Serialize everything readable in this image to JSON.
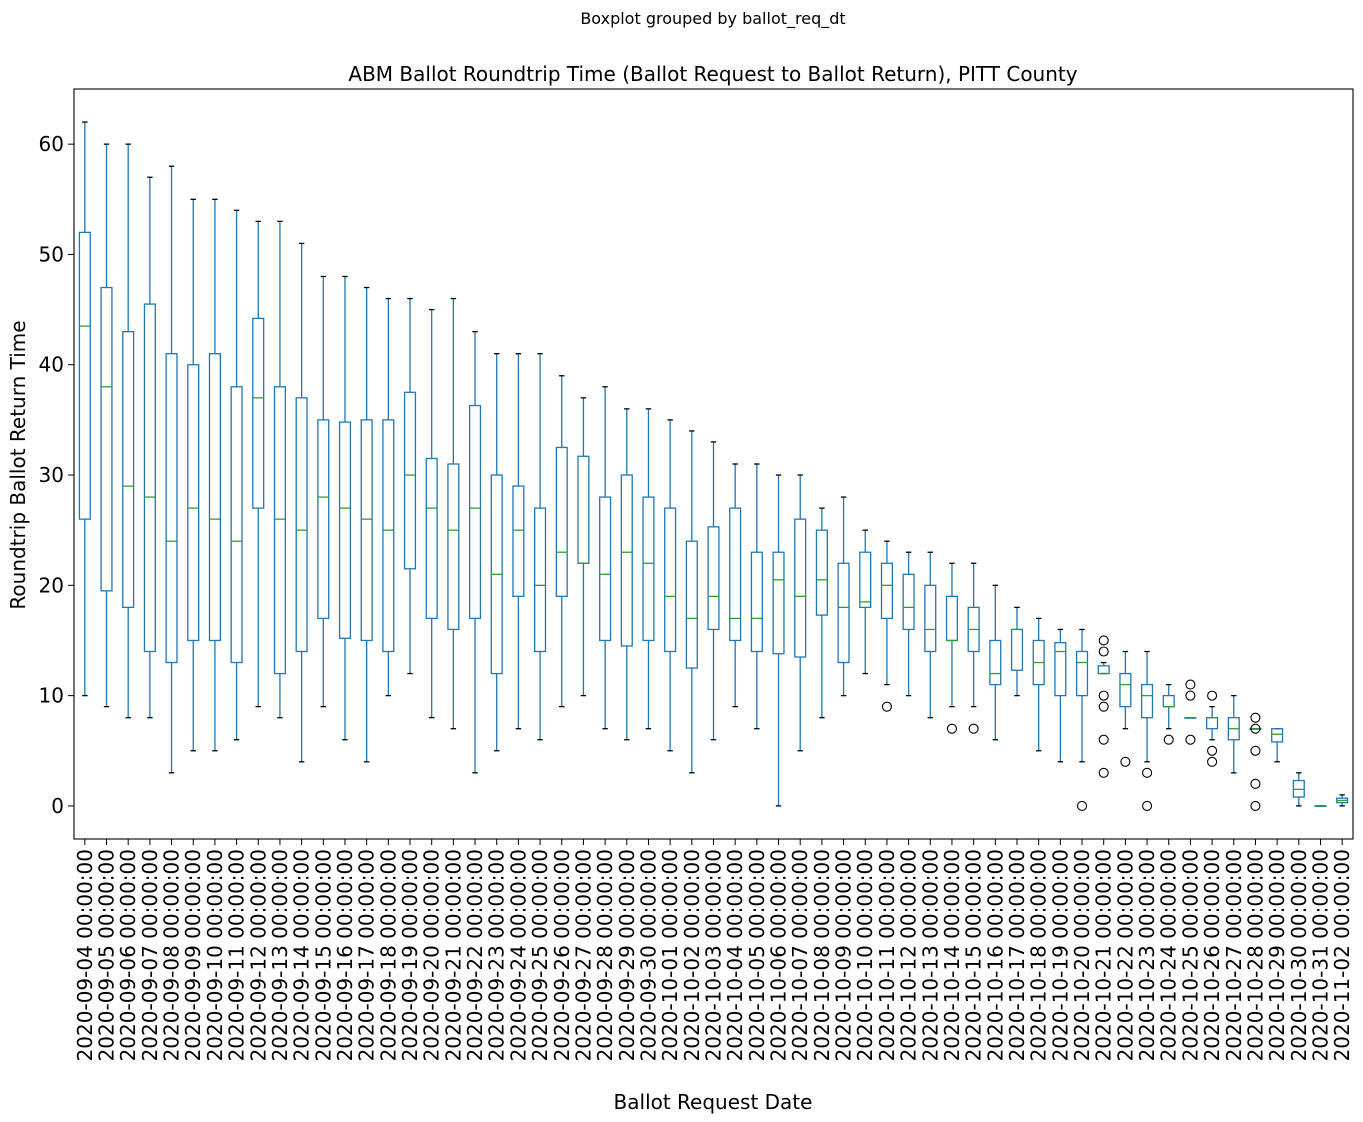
{
  "suptitle": "Boxplot grouped by ballot_req_dt",
  "chart_data": {
    "type": "boxplot",
    "title": "ABM Ballot Roundtrip Time (Ballot Request to Ballot Return), PITT County",
    "xlabel": "Ballot Request Date",
    "ylabel": "Roundtrip Ballot Return Time",
    "ylim": [
      -3,
      65
    ],
    "yticks": [
      0,
      10,
      20,
      30,
      40,
      50,
      60
    ],
    "grid": false,
    "categories": [
      "2020-09-04 00:00:00",
      "2020-09-05 00:00:00",
      "2020-09-06 00:00:00",
      "2020-09-07 00:00:00",
      "2020-09-08 00:00:00",
      "2020-09-09 00:00:00",
      "2020-09-10 00:00:00",
      "2020-09-11 00:00:00",
      "2020-09-12 00:00:00",
      "2020-09-13 00:00:00",
      "2020-09-14 00:00:00",
      "2020-09-15 00:00:00",
      "2020-09-16 00:00:00",
      "2020-09-17 00:00:00",
      "2020-09-18 00:00:00",
      "2020-09-19 00:00:00",
      "2020-09-20 00:00:00",
      "2020-09-21 00:00:00",
      "2020-09-22 00:00:00",
      "2020-09-23 00:00:00",
      "2020-09-24 00:00:00",
      "2020-09-25 00:00:00",
      "2020-09-26 00:00:00",
      "2020-09-27 00:00:00",
      "2020-09-28 00:00:00",
      "2020-09-29 00:00:00",
      "2020-09-30 00:00:00",
      "2020-10-01 00:00:00",
      "2020-10-02 00:00:00",
      "2020-10-03 00:00:00",
      "2020-10-04 00:00:00",
      "2020-10-05 00:00:00",
      "2020-10-06 00:00:00",
      "2020-10-07 00:00:00",
      "2020-10-08 00:00:00",
      "2020-10-09 00:00:00",
      "2020-10-10 00:00:00",
      "2020-10-11 00:00:00",
      "2020-10-12 00:00:00",
      "2020-10-13 00:00:00",
      "2020-10-14 00:00:00",
      "2020-10-15 00:00:00",
      "2020-10-16 00:00:00",
      "2020-10-17 00:00:00",
      "2020-10-18 00:00:00",
      "2020-10-19 00:00:00",
      "2020-10-20 00:00:00",
      "2020-10-21 00:00:00",
      "2020-10-22 00:00:00",
      "2020-10-23 00:00:00",
      "2020-10-24 00:00:00",
      "2020-10-25 00:00:00",
      "2020-10-26 00:00:00",
      "2020-10-27 00:00:00",
      "2020-10-28 00:00:00",
      "2020-10-29 00:00:00",
      "2020-10-30 00:00:00",
      "2020-10-31 00:00:00",
      "2020-11-02 00:00:00"
    ],
    "boxes": [
      {
        "whislo": 10,
        "q1": 26,
        "med": 43.5,
        "q3": 52,
        "whishi": 62,
        "fliers": []
      },
      {
        "whislo": 9,
        "q1": 19.5,
        "med": 38,
        "q3": 47,
        "whishi": 60,
        "fliers": []
      },
      {
        "whislo": 8,
        "q1": 18,
        "med": 29,
        "q3": 43,
        "whishi": 60,
        "fliers": []
      },
      {
        "whislo": 8,
        "q1": 14,
        "med": 28,
        "q3": 45.5,
        "whishi": 57,
        "fliers": []
      },
      {
        "whislo": 3,
        "q1": 13,
        "med": 24,
        "q3": 41,
        "whishi": 58,
        "fliers": []
      },
      {
        "whislo": 5,
        "q1": 15,
        "med": 27,
        "q3": 40,
        "whishi": 55,
        "fliers": []
      },
      {
        "whislo": 5,
        "q1": 15,
        "med": 26,
        "q3": 41,
        "whishi": 55,
        "fliers": []
      },
      {
        "whislo": 6,
        "q1": 13,
        "med": 24,
        "q3": 38,
        "whishi": 54,
        "fliers": []
      },
      {
        "whislo": 9,
        "q1": 27,
        "med": 37,
        "q3": 44.2,
        "whishi": 53,
        "fliers": []
      },
      {
        "whislo": 8,
        "q1": 12,
        "med": 26,
        "q3": 38,
        "whishi": 53,
        "fliers": []
      },
      {
        "whislo": 4,
        "q1": 14,
        "med": 25,
        "q3": 37,
        "whishi": 51,
        "fliers": []
      },
      {
        "whislo": 9,
        "q1": 17,
        "med": 28,
        "q3": 35,
        "whishi": 48,
        "fliers": []
      },
      {
        "whislo": 6,
        "q1": 15.2,
        "med": 27,
        "q3": 34.8,
        "whishi": 48,
        "fliers": []
      },
      {
        "whislo": 4,
        "q1": 15,
        "med": 26,
        "q3": 35,
        "whishi": 47,
        "fliers": []
      },
      {
        "whislo": 10,
        "q1": 14,
        "med": 25,
        "q3": 35,
        "whishi": 46,
        "fliers": []
      },
      {
        "whislo": 12,
        "q1": 21.5,
        "med": 30,
        "q3": 37.5,
        "whishi": 46,
        "fliers": []
      },
      {
        "whislo": 8,
        "q1": 17,
        "med": 27,
        "q3": 31.5,
        "whishi": 45,
        "fliers": []
      },
      {
        "whislo": 7,
        "q1": 16,
        "med": 25,
        "q3": 31,
        "whishi": 46,
        "fliers": []
      },
      {
        "whislo": 3,
        "q1": 17,
        "med": 27,
        "q3": 36.3,
        "whishi": 43,
        "fliers": []
      },
      {
        "whislo": 5,
        "q1": 12,
        "med": 21,
        "q3": 30,
        "whishi": 41,
        "fliers": []
      },
      {
        "whislo": 7,
        "q1": 19,
        "med": 25,
        "q3": 29,
        "whishi": 41,
        "fliers": []
      },
      {
        "whislo": 6,
        "q1": 14,
        "med": 20,
        "q3": 27,
        "whishi": 41,
        "fliers": []
      },
      {
        "whislo": 9,
        "q1": 19,
        "med": 23,
        "q3": 32.5,
        "whishi": 39,
        "fliers": []
      },
      {
        "whislo": 10,
        "q1": 22,
        "med": 22,
        "q3": 31.7,
        "whishi": 37,
        "fliers": []
      },
      {
        "whislo": 7,
        "q1": 15,
        "med": 21,
        "q3": 28,
        "whishi": 38,
        "fliers": []
      },
      {
        "whislo": 6,
        "q1": 14.5,
        "med": 23,
        "q3": 30,
        "whishi": 36,
        "fliers": []
      },
      {
        "whislo": 7,
        "q1": 15,
        "med": 22,
        "q3": 28,
        "whishi": 36,
        "fliers": []
      },
      {
        "whislo": 5,
        "q1": 14,
        "med": 19,
        "q3": 27,
        "whishi": 35,
        "fliers": []
      },
      {
        "whislo": 3,
        "q1": 12.5,
        "med": 17,
        "q3": 24,
        "whishi": 34,
        "fliers": []
      },
      {
        "whislo": 6,
        "q1": 16,
        "med": 19,
        "q3": 25.3,
        "whishi": 33,
        "fliers": []
      },
      {
        "whislo": 9,
        "q1": 15,
        "med": 17,
        "q3": 27,
        "whishi": 31,
        "fliers": []
      },
      {
        "whislo": 7,
        "q1": 14,
        "med": 17,
        "q3": 23,
        "whishi": 31,
        "fliers": []
      },
      {
        "whislo": 0,
        "q1": 13.8,
        "med": 20.5,
        "q3": 23,
        "whishi": 30,
        "fliers": []
      },
      {
        "whislo": 5,
        "q1": 13.5,
        "med": 19,
        "q3": 26,
        "whishi": 30,
        "fliers": []
      },
      {
        "whislo": 8,
        "q1": 17.3,
        "med": 20.5,
        "q3": 25,
        "whishi": 27,
        "fliers": []
      },
      {
        "whislo": 10,
        "q1": 13,
        "med": 18,
        "q3": 22,
        "whishi": 28,
        "fliers": []
      },
      {
        "whislo": 12,
        "q1": 18,
        "med": 18.5,
        "q3": 23,
        "whishi": 25,
        "fliers": []
      },
      {
        "whislo": 11,
        "q1": 17,
        "med": 20,
        "q3": 22,
        "whishi": 24,
        "fliers": [
          9
        ]
      },
      {
        "whislo": 10,
        "q1": 16,
        "med": 18,
        "q3": 21,
        "whishi": 23,
        "fliers": []
      },
      {
        "whislo": 8,
        "q1": 14,
        "med": 16,
        "q3": 20,
        "whishi": 23,
        "fliers": []
      },
      {
        "whislo": 9,
        "q1": 15,
        "med": 15,
        "q3": 19,
        "whishi": 22,
        "fliers": [
          7
        ]
      },
      {
        "whislo": 9,
        "q1": 14,
        "med": 16,
        "q3": 18,
        "whishi": 22,
        "fliers": [
          7
        ]
      },
      {
        "whislo": 6,
        "q1": 11,
        "med": 12,
        "q3": 15,
        "whishi": 20,
        "fliers": []
      },
      {
        "whislo": 10,
        "q1": 12.3,
        "med": 16,
        "q3": 16,
        "whishi": 18,
        "fliers": []
      },
      {
        "whislo": 5,
        "q1": 11,
        "med": 13,
        "q3": 15,
        "whishi": 17,
        "fliers": []
      },
      {
        "whislo": 4,
        "q1": 10,
        "med": 14,
        "q3": 14.8,
        "whishi": 16,
        "fliers": []
      },
      {
        "whislo": 4,
        "q1": 10,
        "med": 13,
        "q3": 14,
        "whishi": 16,
        "fliers": [
          0
        ]
      },
      {
        "whislo": 12,
        "q1": 12,
        "med": 12,
        "q3": 12.7,
        "whishi": 13,
        "fliers": [
          15,
          14,
          10,
          9,
          6,
          3
        ]
      },
      {
        "whislo": 7,
        "q1": 9,
        "med": 11,
        "q3": 12,
        "whishi": 14,
        "fliers": [
          4
        ]
      },
      {
        "whislo": 4,
        "q1": 8,
        "med": 10,
        "q3": 11,
        "whishi": 14,
        "fliers": [
          3,
          0
        ]
      },
      {
        "whislo": 7,
        "q1": 9,
        "med": 9,
        "q3": 10,
        "whishi": 11,
        "fliers": [
          6
        ]
      },
      {
        "whislo": 8,
        "q1": 8,
        "med": 8,
        "q3": 8,
        "whishi": 8,
        "fliers": [
          11,
          10,
          6
        ]
      },
      {
        "whislo": 6,
        "q1": 7,
        "med": 8,
        "q3": 8,
        "whishi": 9,
        "fliers": [
          10,
          5,
          4
        ]
      },
      {
        "whislo": 3,
        "q1": 6,
        "med": 7,
        "q3": 8,
        "whishi": 10,
        "fliers": []
      },
      {
        "whislo": 7,
        "q1": 7,
        "med": 7,
        "q3": 7,
        "whishi": 7,
        "fliers": [
          8,
          7,
          5,
          2,
          0
        ]
      },
      {
        "whislo": 4,
        "q1": 5.8,
        "med": 6.5,
        "q3": 7,
        "whishi": 7,
        "fliers": []
      },
      {
        "whislo": 0,
        "q1": 0.8,
        "med": 1.5,
        "q3": 2.3,
        "whishi": 3,
        "fliers": []
      },
      {
        "whislo": 0,
        "q1": 0,
        "med": 0,
        "q3": 0,
        "whishi": 0,
        "fliers": []
      },
      {
        "whislo": 0,
        "q1": 0.3,
        "med": 0.5,
        "q3": 0.7,
        "whishi": 1,
        "fliers": []
      }
    ]
  }
}
